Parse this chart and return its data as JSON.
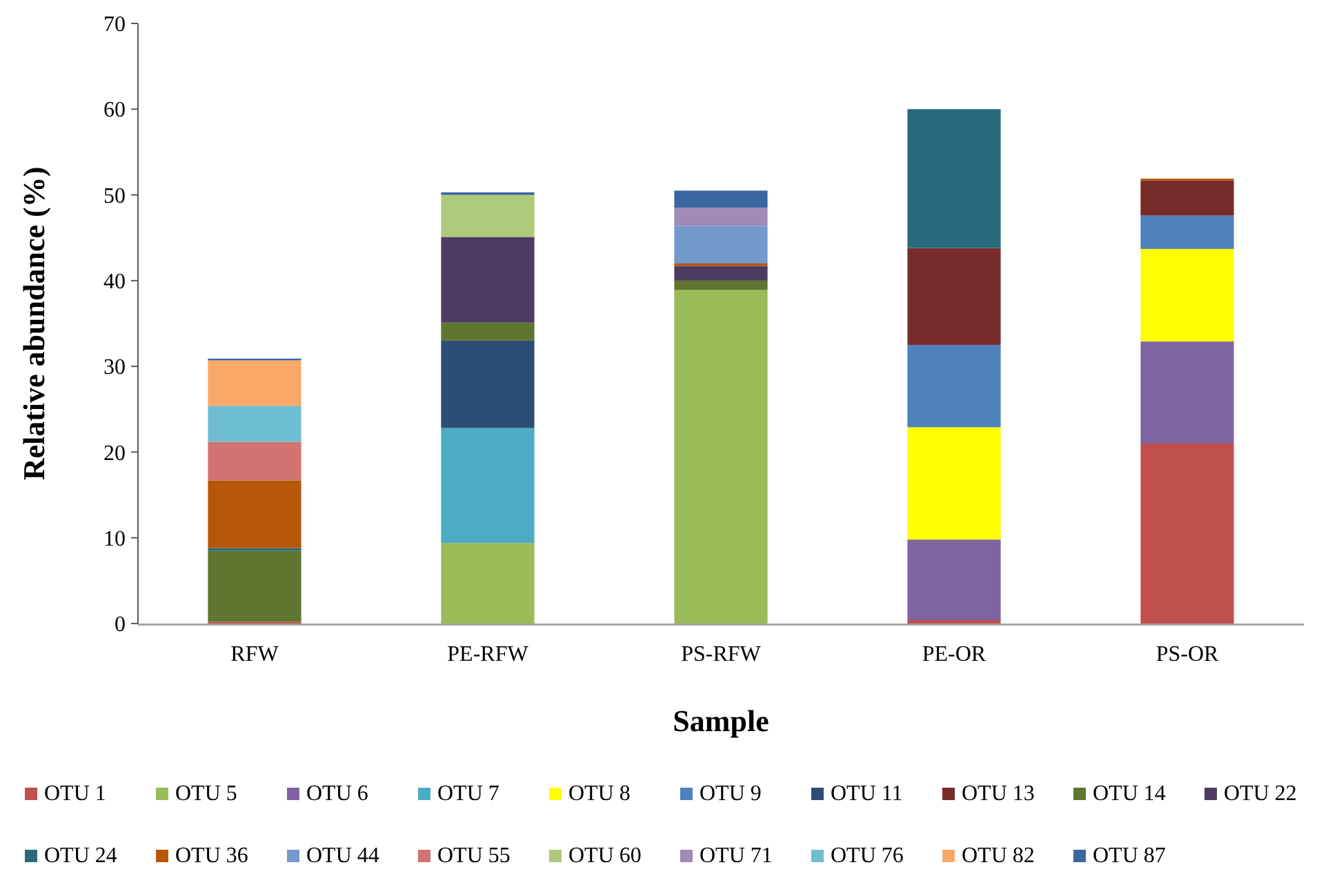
{
  "chart_data": {
    "type": "bar",
    "stacked": true,
    "xlabel": "Sample",
    "ylabel": "Relative abundance (%)",
    "categories": [
      "RFW",
      "PE-RFW",
      "PS-RFW",
      "PE-OR",
      "PS-OR"
    ],
    "ylim": [
      0,
      70
    ],
    "yticks": [
      0,
      10,
      20,
      30,
      40,
      50,
      60,
      70
    ],
    "grid": false,
    "legend": "bottom",
    "series": [
      {
        "name": "OTU 1",
        "color": "#c0504d",
        "values": [
          0.2,
          0,
          0,
          0.4,
          21.0
        ]
      },
      {
        "name": "OTU 5",
        "color": "#9bbb59",
        "values": [
          0,
          9.4,
          38.9,
          0,
          0
        ]
      },
      {
        "name": "OTU 6",
        "color": "#8064a2",
        "values": [
          0,
          0,
          0,
          9.4,
          11.9
        ]
      },
      {
        "name": "OTU 7",
        "color": "#4bacc6",
        "values": [
          0,
          13.4,
          0,
          0,
          0
        ]
      },
      {
        "name": "OTU 8",
        "color": "#ffff00",
        "values": [
          0,
          0,
          0,
          13.1,
          10.8
        ]
      },
      {
        "name": "OTU 9",
        "color": "#4f81bd",
        "values": [
          0,
          0,
          0,
          9.6,
          3.9
        ]
      },
      {
        "name": "OTU 11",
        "color": "#2c4d75",
        "values": [
          0,
          10.2,
          0,
          0,
          0
        ]
      },
      {
        "name": "OTU 13",
        "color": "#772c2a",
        "values": [
          0,
          0,
          0,
          11.3,
          4.1
        ]
      },
      {
        "name": "OTU 14",
        "color": "#5f7530",
        "values": [
          8.3,
          2.1,
          1.1,
          0,
          0
        ]
      },
      {
        "name": "OTU 22",
        "color": "#4d3b62",
        "values": [
          0,
          10.0,
          1.7,
          0,
          0
        ]
      },
      {
        "name": "OTU 24",
        "color": "#276a7c",
        "values": [
          0.3,
          0,
          0,
          16.2,
          0
        ]
      },
      {
        "name": "OTU 36",
        "color": "#b65708",
        "values": [
          7.9,
          0,
          0.3,
          0,
          0.2
        ]
      },
      {
        "name": "OTU 44",
        "color": "#729aca",
        "values": [
          0,
          0,
          4.4,
          0,
          0
        ]
      },
      {
        "name": "OTU 55",
        "color": "#d07371",
        "values": [
          4.5,
          0,
          0,
          0,
          0
        ]
      },
      {
        "name": "OTU 60",
        "color": "#afc97a",
        "values": [
          0,
          4.9,
          0,
          0,
          0
        ]
      },
      {
        "name": "OTU 71",
        "color": "#a08ab8",
        "values": [
          0,
          0,
          2.1,
          0,
          0
        ]
      },
      {
        "name": "OTU 76",
        "color": "#6fbdd1",
        "values": [
          4.2,
          0,
          0,
          0,
          0
        ]
      },
      {
        "name": "OTU 82",
        "color": "#f9a868",
        "values": [
          5.3,
          0,
          0,
          0,
          0
        ]
      },
      {
        "name": "OTU 87",
        "color": "#3a67a0",
        "values": [
          0.2,
          0.3,
          2.0,
          0,
          0
        ]
      }
    ]
  }
}
